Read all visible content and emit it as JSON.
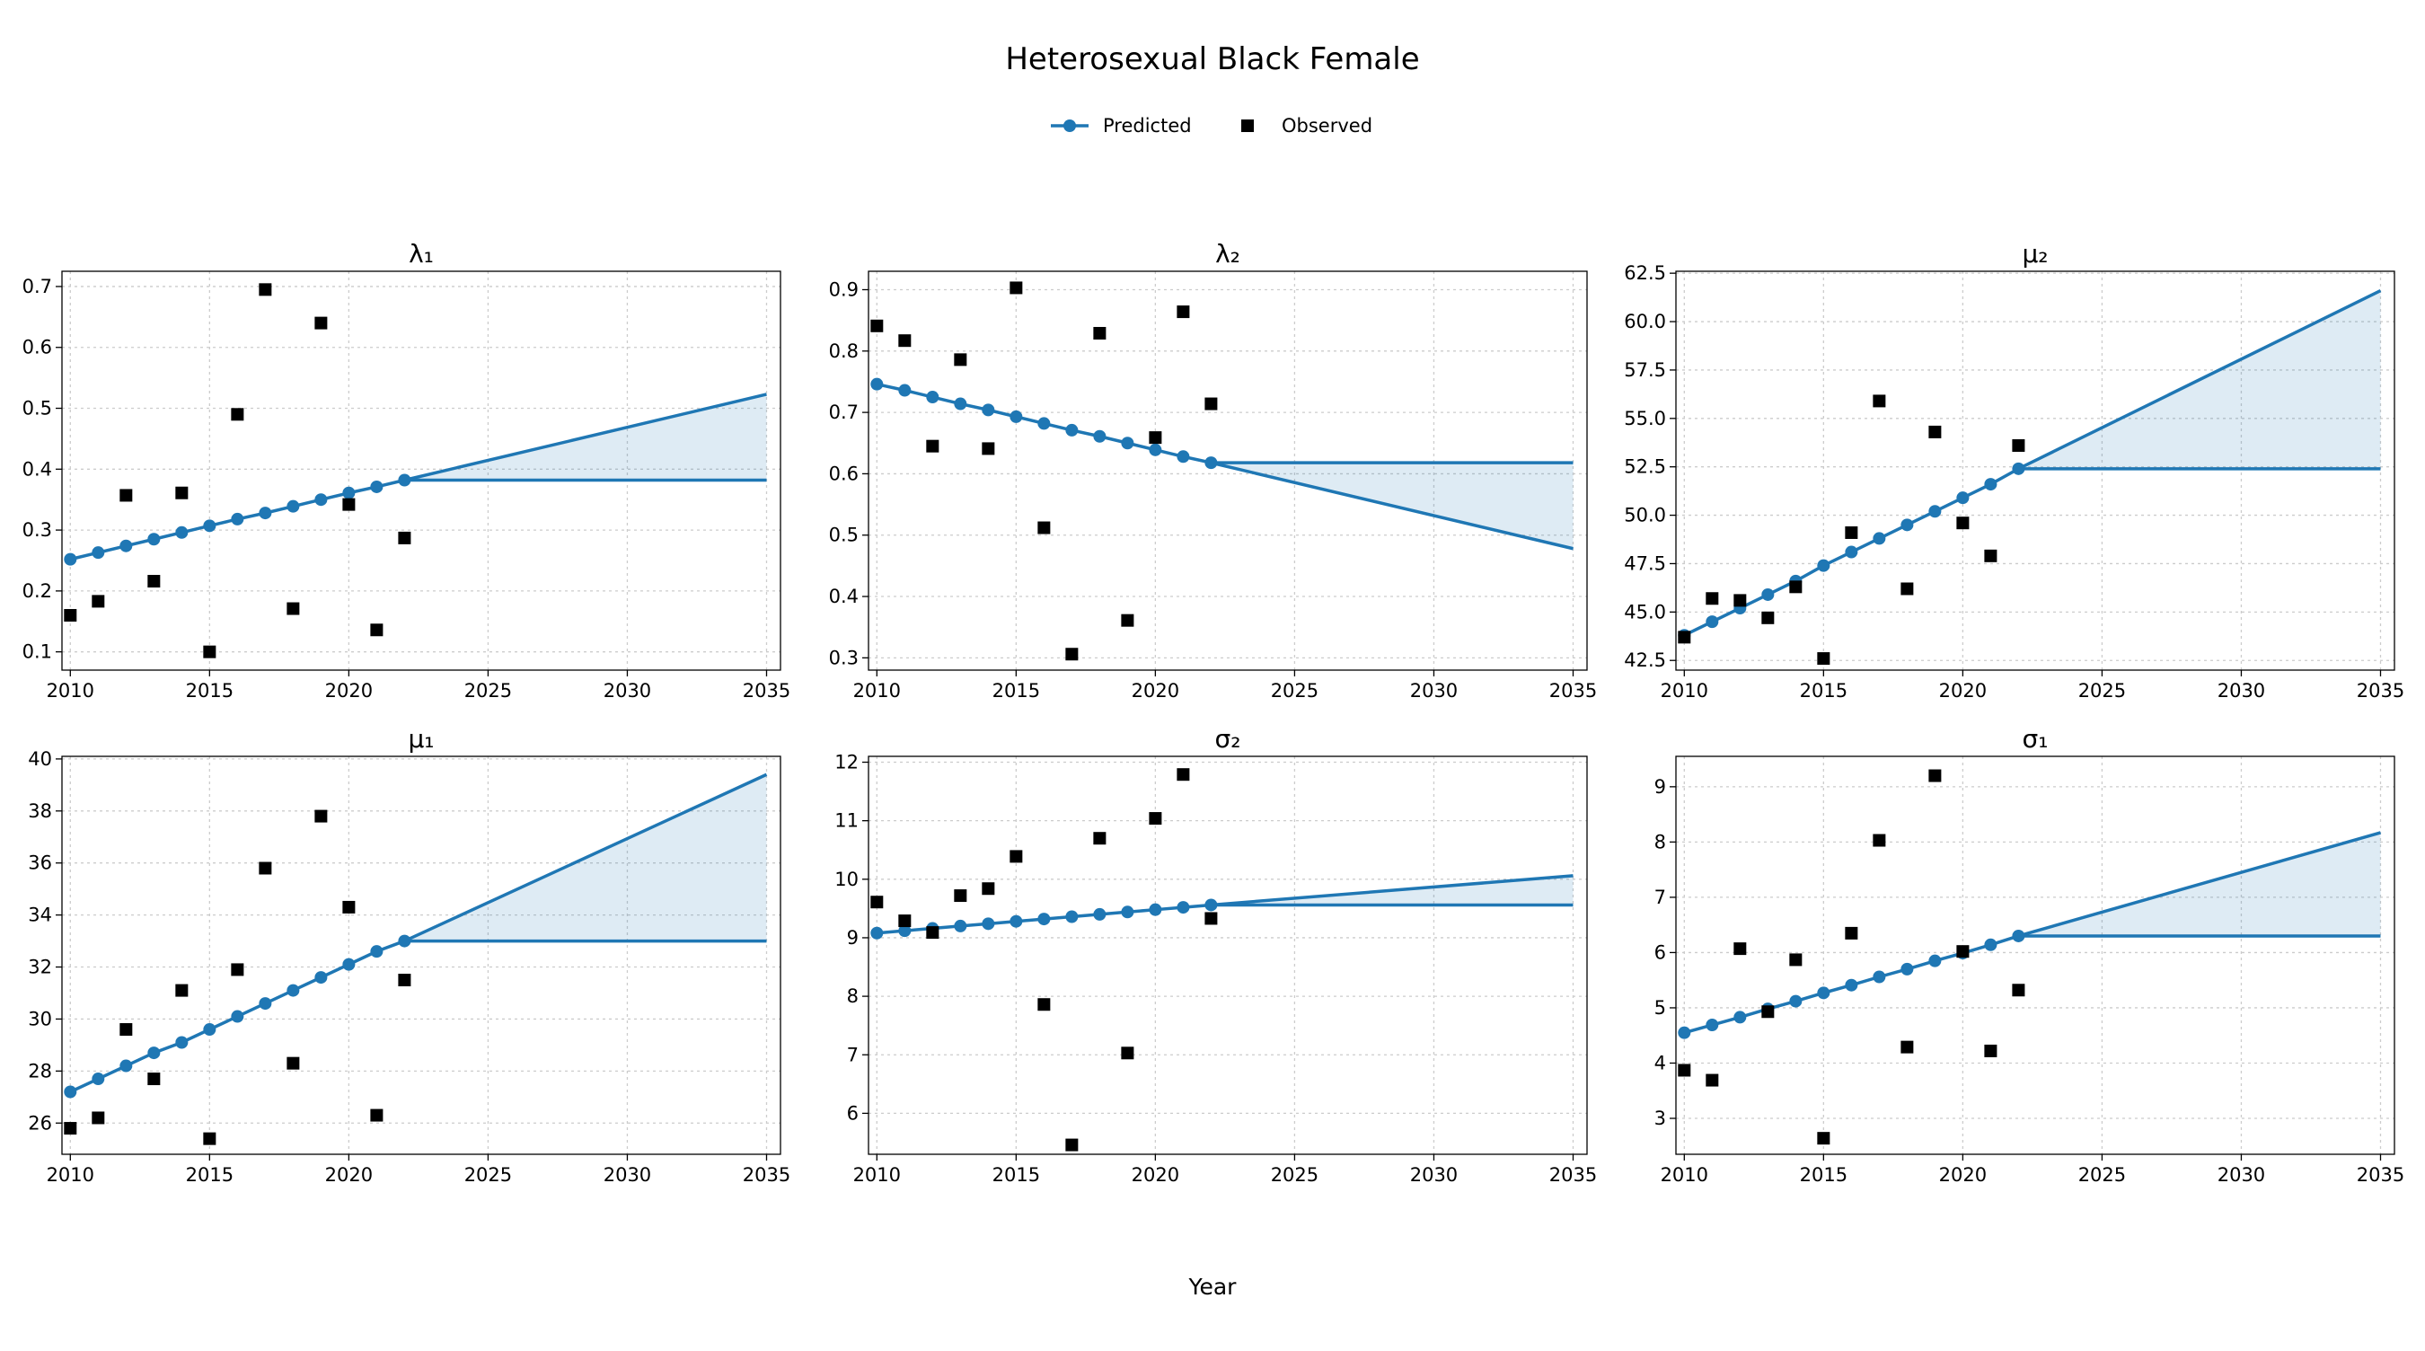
{
  "figure": {
    "title": "Heterosexual Black Female",
    "xlabel": "Year",
    "legend": {
      "placement": "top-center",
      "predicted_label": "Predicted",
      "observed_label": "Observed"
    },
    "colors": {
      "predicted": "#1f77b4",
      "observed": "#000000",
      "band": "#1f77b4"
    }
  },
  "chart_data": [
    {
      "type": "line",
      "title": "λ₁",
      "grid": true,
      "xlim": [
        2009.7,
        2035.5
      ],
      "ylim": [
        0.07,
        0.725
      ],
      "xticks": [
        2010,
        2015,
        2020,
        2025,
        2030,
        2035
      ],
      "yticks": [
        0.1,
        0.2,
        0.3,
        0.4,
        0.5,
        0.6,
        0.7
      ],
      "ytick_labels": [
        "0.1",
        "0.2",
        "0.3",
        "0.4",
        "0.5",
        "0.6",
        "0.7"
      ],
      "predicted": {
        "x": [
          2010,
          2011,
          2012,
          2013,
          2014,
          2015,
          2016,
          2017,
          2018,
          2019,
          2020,
          2021,
          2022
        ],
        "y": [
          0.252,
          0.263,
          0.274,
          0.285,
          0.296,
          0.307,
          0.318,
          0.328,
          0.339,
          0.35,
          0.361,
          0.371,
          0.382
        ]
      },
      "observed": {
        "x": [
          2010,
          2011,
          2012,
          2013,
          2014,
          2015,
          2016,
          2017,
          2018,
          2019,
          2020,
          2021,
          2022
        ],
        "y": [
          0.16,
          0.183,
          0.357,
          0.216,
          0.361,
          0.1,
          0.49,
          0.695,
          0.171,
          0.64,
          0.342,
          0.136,
          0.287
        ]
      },
      "projection": {
        "x": [
          2022,
          2035
        ],
        "upper": [
          0.382,
          0.523
        ],
        "lower": [
          0.382,
          0.382
        ]
      }
    },
    {
      "type": "line",
      "title": "λ₂",
      "grid": true,
      "xlim": [
        2009.7,
        2035.5
      ],
      "ylim": [
        0.28,
        0.93
      ],
      "xticks": [
        2010,
        2015,
        2020,
        2025,
        2030,
        2035
      ],
      "yticks": [
        0.3,
        0.4,
        0.5,
        0.6,
        0.7,
        0.8,
        0.9
      ],
      "ytick_labels": [
        "0.3",
        "0.4",
        "0.5",
        "0.6",
        "0.7",
        "0.8",
        "0.9"
      ],
      "predicted": {
        "x": [
          2010,
          2011,
          2012,
          2013,
          2014,
          2015,
          2016,
          2017,
          2018,
          2019,
          2020,
          2021,
          2022
        ],
        "y": [
          0.746,
          0.736,
          0.725,
          0.714,
          0.704,
          0.693,
          0.682,
          0.671,
          0.661,
          0.65,
          0.639,
          0.628,
          0.618
        ]
      },
      "observed": {
        "x": [
          2010,
          2011,
          2012,
          2013,
          2014,
          2015,
          2016,
          2017,
          2018,
          2019,
          2020,
          2021,
          2022
        ],
        "y": [
          0.841,
          0.817,
          0.645,
          0.786,
          0.641,
          0.903,
          0.512,
          0.306,
          0.829,
          0.361,
          0.659,
          0.864,
          0.714
        ]
      },
      "projection": {
        "x": [
          2022,
          2035
        ],
        "upper": [
          0.618,
          0.618
        ],
        "lower": [
          0.618,
          0.478
        ]
      }
    },
    {
      "type": "line",
      "title": "μ₂",
      "grid": true,
      "xlim": [
        2009.7,
        2035.5
      ],
      "ylim": [
        42.0,
        62.6
      ],
      "xticks": [
        2010,
        2015,
        2020,
        2025,
        2030,
        2035
      ],
      "yticks": [
        42.5,
        45.0,
        47.5,
        50.0,
        52.5,
        55.0,
        57.5,
        60.0,
        62.5
      ],
      "ytick_labels": [
        "42.5",
        "45.0",
        "47.5",
        "50.0",
        "52.5",
        "55.0",
        "57.5",
        "60.0",
        "62.5"
      ],
      "predicted": {
        "x": [
          2010,
          2011,
          2012,
          2013,
          2014,
          2015,
          2016,
          2017,
          2018,
          2019,
          2020,
          2021,
          2022
        ],
        "y": [
          43.8,
          44.5,
          45.2,
          45.9,
          46.6,
          47.4,
          48.1,
          48.8,
          49.5,
          50.2,
          50.9,
          51.6,
          52.4
        ]
      },
      "observed": {
        "x": [
          2010,
          2011,
          2012,
          2013,
          2014,
          2015,
          2016,
          2017,
          2018,
          2019,
          2020,
          2021,
          2022
        ],
        "y": [
          43.7,
          45.7,
          45.6,
          44.7,
          46.3,
          42.6,
          49.1,
          55.9,
          46.2,
          54.3,
          49.6,
          47.9,
          53.6
        ]
      },
      "projection": {
        "x": [
          2022,
          2035
        ],
        "upper": [
          52.4,
          61.6
        ],
        "lower": [
          52.4,
          52.4
        ]
      }
    },
    {
      "type": "line",
      "title": "μ₁",
      "grid": true,
      "xlim": [
        2009.7,
        2035.5
      ],
      "ylim": [
        24.8,
        40.1
      ],
      "xticks": [
        2010,
        2015,
        2020,
        2025,
        2030,
        2035
      ],
      "yticks": [
        26,
        28,
        30,
        32,
        34,
        36,
        38,
        40
      ],
      "ytick_labels": [
        "26",
        "28",
        "30",
        "32",
        "34",
        "36",
        "38",
        "40"
      ],
      "predicted": {
        "x": [
          2010,
          2011,
          2012,
          2013,
          2014,
          2015,
          2016,
          2017,
          2018,
          2019,
          2020,
          2021,
          2022
        ],
        "y": [
          27.2,
          27.7,
          28.2,
          28.7,
          29.1,
          29.6,
          30.1,
          30.6,
          31.1,
          31.6,
          32.1,
          32.6,
          33.0
        ]
      },
      "observed": {
        "x": [
          2010,
          2011,
          2012,
          2013,
          2014,
          2015,
          2016,
          2017,
          2018,
          2019,
          2020,
          2021,
          2022
        ],
        "y": [
          25.8,
          26.2,
          29.6,
          27.7,
          31.1,
          25.4,
          31.9,
          35.8,
          28.3,
          37.8,
          34.3,
          26.3,
          31.5
        ]
      },
      "projection": {
        "x": [
          2022,
          2035
        ],
        "upper": [
          33.0,
          39.4
        ],
        "lower": [
          33.0,
          33.0
        ]
      }
    },
    {
      "type": "line",
      "title": "σ₂",
      "grid": true,
      "xlim": [
        2009.7,
        2035.5
      ],
      "ylim": [
        5.3,
        12.1
      ],
      "xticks": [
        2010,
        2015,
        2020,
        2025,
        2030,
        2035
      ],
      "yticks": [
        6,
        7,
        8,
        9,
        10,
        11,
        12
      ],
      "ytick_labels": [
        "6",
        "7",
        "8",
        "9",
        "10",
        "11",
        "12"
      ],
      "predicted": {
        "x": [
          2010,
          2011,
          2012,
          2013,
          2014,
          2015,
          2016,
          2017,
          2018,
          2019,
          2020,
          2021,
          2022
        ],
        "y": [
          9.08,
          9.12,
          9.16,
          9.2,
          9.24,
          9.28,
          9.32,
          9.36,
          9.4,
          9.44,
          9.48,
          9.52,
          9.56
        ]
      },
      "observed": {
        "x": [
          2010,
          2011,
          2012,
          2013,
          2014,
          2015,
          2016,
          2017,
          2018,
          2019,
          2020,
          2021,
          2022
        ],
        "y": [
          9.61,
          9.29,
          9.09,
          9.72,
          9.84,
          10.39,
          7.86,
          5.46,
          10.7,
          7.03,
          11.04,
          11.79,
          9.33
        ]
      },
      "projection": {
        "x": [
          2022,
          2035
        ],
        "upper": [
          9.56,
          10.06
        ],
        "lower": [
          9.56,
          9.56
        ]
      }
    },
    {
      "type": "line",
      "title": "σ₁",
      "grid": true,
      "xlim": [
        2009.7,
        2035.5
      ],
      "ylim": [
        2.35,
        9.55
      ],
      "xticks": [
        2010,
        2015,
        2020,
        2025,
        2030,
        2035
      ],
      "yticks": [
        3,
        4,
        5,
        6,
        7,
        8,
        9
      ],
      "ytick_labels": [
        "3",
        "4",
        "5",
        "6",
        "7",
        "8",
        "9"
      ],
      "predicted": {
        "x": [
          2010,
          2011,
          2012,
          2013,
          2014,
          2015,
          2016,
          2017,
          2018,
          2019,
          2020,
          2021,
          2022
        ],
        "y": [
          4.55,
          4.69,
          4.83,
          4.98,
          5.12,
          5.27,
          5.41,
          5.56,
          5.7,
          5.85,
          5.99,
          6.14,
          6.3
        ]
      },
      "observed": {
        "x": [
          2010,
          2011,
          2012,
          2013,
          2014,
          2015,
          2016,
          2017,
          2018,
          2019,
          2020,
          2021,
          2022
        ],
        "y": [
          3.87,
          3.69,
          6.07,
          4.93,
          5.87,
          2.64,
          6.35,
          8.03,
          4.29,
          9.2,
          6.02,
          4.22,
          5.32
        ]
      },
      "projection": {
        "x": [
          2022,
          2035
        ],
        "upper": [
          6.3,
          8.17
        ],
        "lower": [
          6.3,
          6.3
        ]
      }
    }
  ]
}
